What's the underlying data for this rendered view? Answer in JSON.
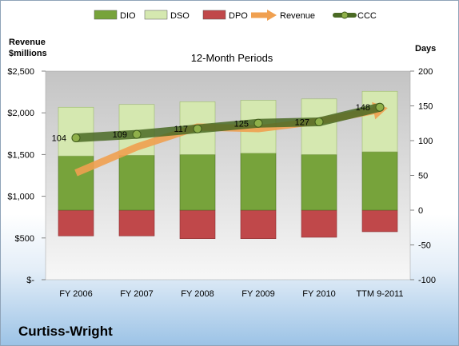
{
  "chart_data": {
    "type": "bar",
    "subtitle": "12-Month Periods",
    "left_axis_title_line1": "Revenue",
    "left_axis_title_line2": "$millions",
    "right_axis_title": "Days",
    "company": "Curtiss-Wright",
    "categories": [
      "FY 2006",
      "FY 2007",
      "FY 2008",
      "FY 2009",
      "FY 2010",
      "TTM 9-2011"
    ],
    "left_axis": {
      "min": 0,
      "max": 2500,
      "step": 500,
      "tick_labels": [
        "$-",
        "$500",
        "$1,000",
        "$1,500",
        "$2,000",
        "$2,500"
      ]
    },
    "right_axis": {
      "min": -100,
      "max": 200,
      "step": 50,
      "tick_labels": [
        "-100",
        "-50",
        "0",
        "50",
        "100",
        "150",
        "200"
      ]
    },
    "legend_placement": "top",
    "series": [
      {
        "name": "DIO",
        "type": "stacked-bar",
        "axis": "right",
        "color": "#77a33b",
        "values": [
          78,
          79,
          80,
          82,
          80,
          84
        ]
      },
      {
        "name": "DSO",
        "type": "stacked-bar",
        "axis": "right",
        "color": "#d5e8b0",
        "values": [
          70,
          73,
          76,
          76,
          80,
          87
        ]
      },
      {
        "name": "DPO",
        "type": "stacked-bar",
        "axis": "right",
        "color": "#c0484a",
        "values": [
          -37,
          -37,
          -41,
          -41,
          -39,
          -31
        ]
      },
      {
        "name": "Revenue",
        "type": "line-arrow",
        "axis": "left",
        "color": "#f0a050",
        "values": [
          1280,
          1590,
          1830,
          1810,
          1900,
          2040
        ]
      },
      {
        "name": "CCC",
        "type": "line",
        "axis": "right",
        "color": "#4a6a24",
        "values": [
          104,
          109,
          117,
          125,
          127,
          148
        ],
        "labels": [
          "104",
          "109",
          "117",
          "125",
          "127",
          "148"
        ]
      }
    ]
  }
}
